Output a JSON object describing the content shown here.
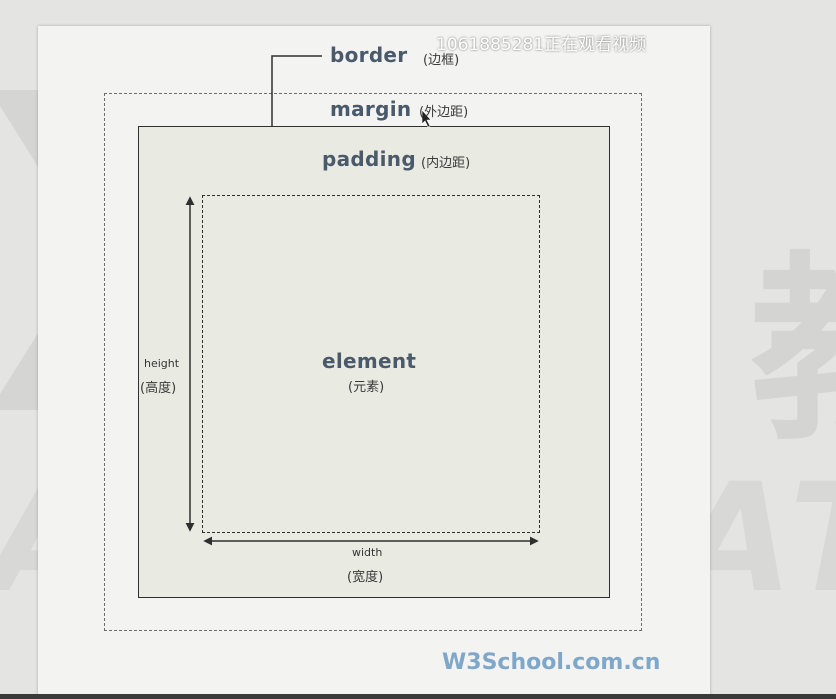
{
  "overlay": {
    "viewer_text": "1061885281正在观看视频"
  },
  "watermark": {
    "chinese_text": "渡一教",
    "english_text": "A EDUCAT",
    "logo_letter": "D"
  },
  "diagram": {
    "border": {
      "label": "border",
      "sublabel": "(边框)"
    },
    "margin": {
      "label": "margin",
      "sublabel": "(外边距)"
    },
    "padding": {
      "label": "padding",
      "sublabel": "(内边距)"
    },
    "element": {
      "label": "element",
      "sublabel": "(元素)"
    },
    "height": {
      "label": "height",
      "sublabel": "(高度)"
    },
    "width": {
      "label": "width",
      "sublabel": "(宽度)"
    }
  },
  "footer": {
    "brand": "W3School.com.cn"
  }
}
